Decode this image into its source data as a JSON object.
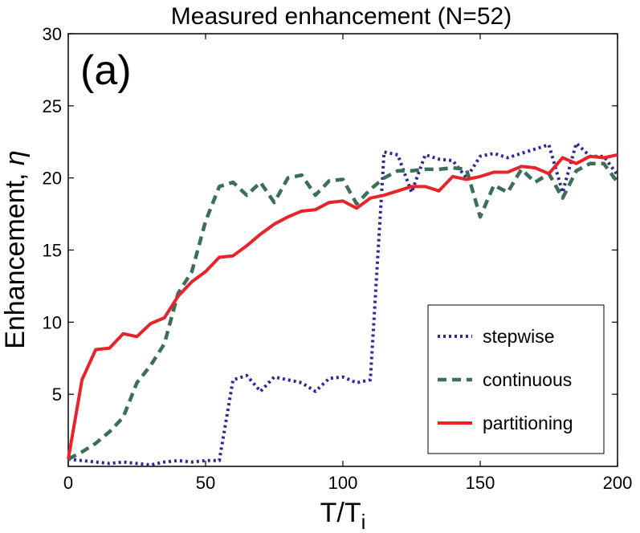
{
  "chart_data": {
    "type": "line",
    "title": "Measured enhancement (N=52)",
    "panel_label": "(a)",
    "xlabel_main": "T/T",
    "xlabel_sub": "i",
    "ylabel_main": "Enhancement, ",
    "ylabel_symbol": "η",
    "xlim": [
      0,
      200
    ],
    "ylim": [
      0,
      30
    ],
    "xticks": [
      0,
      50,
      100,
      150,
      200
    ],
    "yticks": [
      5,
      10,
      15,
      20,
      25,
      30
    ],
    "xtick_labels": [
      "0",
      "50",
      "100",
      "150",
      "200"
    ],
    "ytick_labels": [
      "5",
      "10",
      "15",
      "20",
      "25",
      "30"
    ],
    "legend_position": "lower-right",
    "series": [
      {
        "name": "stepwise",
        "style": "dotted",
        "color": "#2a2a9a",
        "x": [
          0,
          5,
          10,
          15,
          20,
          25,
          30,
          35,
          40,
          45,
          50,
          55,
          60,
          65,
          70,
          75,
          80,
          85,
          90,
          95,
          100,
          105,
          110,
          115,
          120,
          125,
          130,
          135,
          140,
          145,
          150,
          155,
          160,
          165,
          170,
          175,
          180,
          185,
          190,
          195,
          200
        ],
        "y": [
          0.5,
          0.4,
          0.3,
          0.2,
          0.3,
          0.2,
          0.1,
          0.3,
          0.4,
          0.3,
          0.4,
          0.4,
          6.0,
          6.3,
          5.2,
          6.2,
          6.0,
          5.8,
          5.2,
          6.1,
          6.2,
          5.8,
          6.0,
          21.8,
          21.6,
          19.0,
          21.6,
          21.3,
          21.2,
          20.0,
          21.5,
          21.7,
          21.4,
          21.7,
          22.0,
          22.3,
          19.0,
          22.4,
          21.5,
          21.5,
          20.2
        ]
      },
      {
        "name": "continuous",
        "style": "dashed",
        "color": "#3c6e58",
        "x": [
          0,
          5,
          10,
          15,
          20,
          25,
          30,
          35,
          40,
          45,
          50,
          55,
          60,
          65,
          70,
          75,
          80,
          85,
          90,
          95,
          100,
          105,
          110,
          115,
          120,
          125,
          130,
          135,
          140,
          145,
          150,
          155,
          160,
          165,
          170,
          175,
          180,
          185,
          190,
          195,
          200
        ],
        "y": [
          0.5,
          1.0,
          1.6,
          2.4,
          3.4,
          5.8,
          7.0,
          8.5,
          12.0,
          13.5,
          17.0,
          19.4,
          19.7,
          18.8,
          19.7,
          18.3,
          20.0,
          20.2,
          18.8,
          19.8,
          19.9,
          18.2,
          19.2,
          20.0,
          20.5,
          20.5,
          20.6,
          20.6,
          20.7,
          20.6,
          17.3,
          19.5,
          19.0,
          20.6,
          19.7,
          20.3,
          18.6,
          20.5,
          21.0,
          21.0,
          19.7
        ]
      },
      {
        "name": "partitioning",
        "style": "solid",
        "color": "#e8232a",
        "x": [
          0,
          5,
          10,
          15,
          20,
          25,
          30,
          35,
          40,
          45,
          50,
          55,
          60,
          65,
          70,
          75,
          80,
          85,
          90,
          95,
          100,
          105,
          110,
          115,
          120,
          125,
          130,
          135,
          140,
          145,
          150,
          155,
          160,
          165,
          170,
          175,
          180,
          185,
          190,
          195,
          200
        ],
        "y": [
          0.5,
          6.0,
          8.1,
          8.2,
          9.2,
          9.0,
          9.9,
          10.3,
          11.8,
          12.8,
          13.5,
          14.5,
          14.6,
          15.3,
          16.1,
          16.8,
          17.3,
          17.7,
          17.8,
          18.3,
          18.4,
          17.9,
          18.6,
          18.8,
          19.1,
          19.4,
          19.4,
          19.1,
          20.1,
          19.9,
          20.1,
          20.4,
          20.4,
          20.8,
          20.7,
          20.3,
          21.4,
          21.0,
          21.5,
          21.4,
          21.6
        ]
      }
    ]
  }
}
